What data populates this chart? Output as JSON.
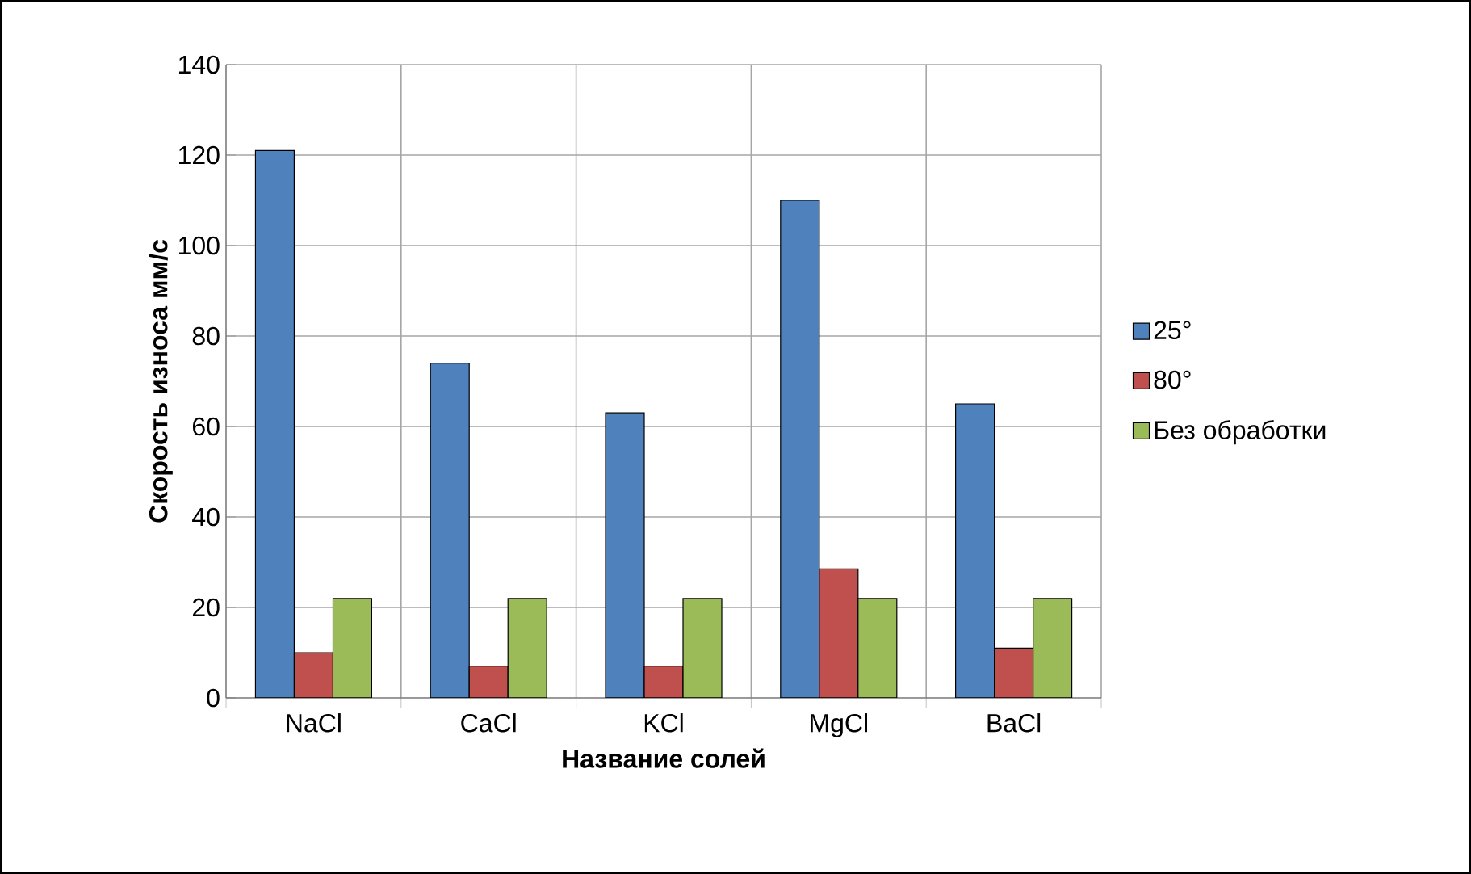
{
  "chart_data": {
    "type": "bar",
    "xlabel": "Название солей",
    "ylabel": "Скорость износа мм/с",
    "categories": [
      "NaCl",
      "CaCl",
      "KCl",
      "MgCl",
      "BaCl"
    ],
    "series": [
      {
        "name": "25°",
        "color": "#4f81bd",
        "values": [
          121,
          74,
          63,
          110,
          65
        ]
      },
      {
        "name": "80°",
        "color": "#c0504d",
        "values": [
          10,
          7,
          7,
          28.5,
          11
        ]
      },
      {
        "name": "Без обработки",
        "color": "#9bbb59",
        "values": [
          22,
          22,
          22,
          22,
          22
        ]
      }
    ],
    "ylim": [
      0,
      140
    ],
    "yticks": [
      0,
      20,
      40,
      60,
      80,
      100,
      120,
      140
    ],
    "grid": true,
    "legend": "right"
  }
}
